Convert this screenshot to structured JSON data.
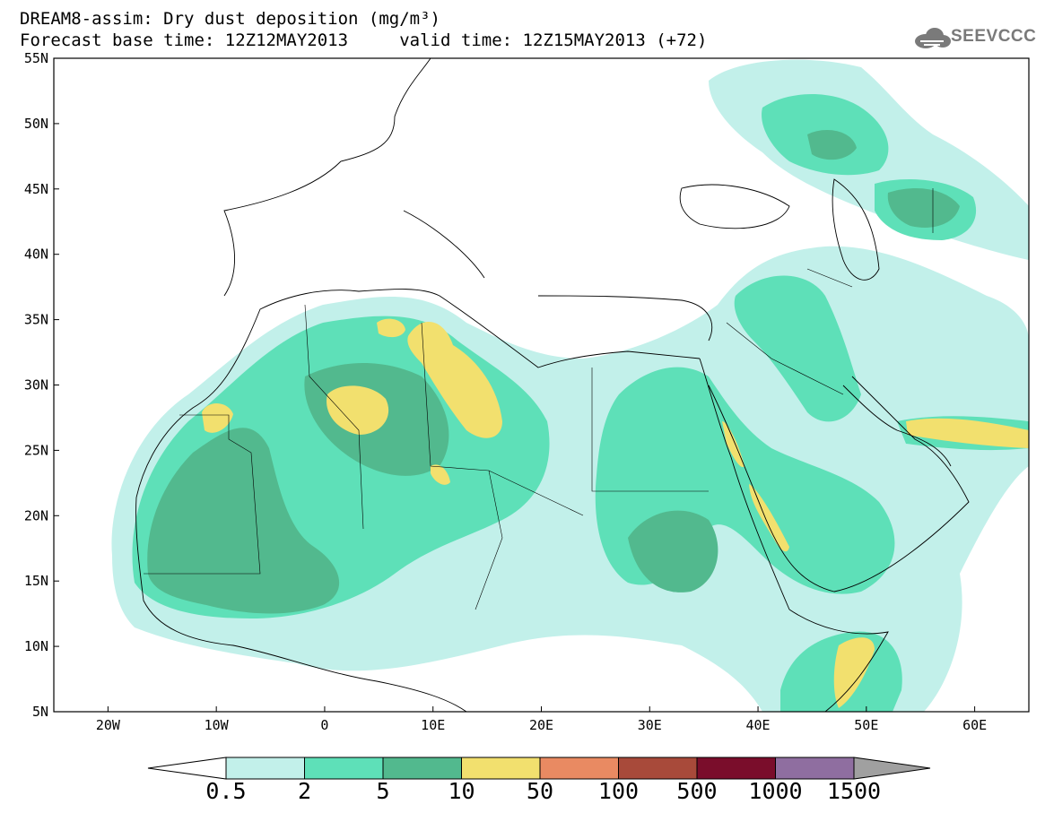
{
  "title": {
    "line1": "DREAM8-assim: Dry dust deposition (mg/m³)",
    "line2": "Forecast base time: 12Z12MAY2013     valid time: 12Z15MAY2013 (+72)"
  },
  "logo": {
    "text": "SEEVCCC",
    "icon": "cloud-icon"
  },
  "map": {
    "lon_range": [
      -25,
      65
    ],
    "lat_range": [
      5,
      55
    ],
    "x_ticks": [
      "20W",
      "10W",
      "0",
      "10E",
      "20E",
      "30E",
      "40E",
      "50E",
      "60E"
    ],
    "y_ticks": [
      "55N",
      "50N",
      "45N",
      "40N",
      "35N",
      "30N",
      "25N",
      "20N",
      "15N",
      "10N",
      "5N"
    ]
  },
  "colorbar": {
    "labels": [
      "0.5",
      "2",
      "5",
      "10",
      "50",
      "100",
      "500",
      "1000",
      "1500"
    ],
    "colors": [
      "#c2f0ea",
      "#5ee0b8",
      "#52b98e",
      "#f2e06e",
      "#e98a62",
      "#a84a3a",
      "#7a0d2b",
      "#8f6ea0"
    ]
  },
  "palette": {
    "land": "#ffffff",
    "border": "#000000"
  }
}
